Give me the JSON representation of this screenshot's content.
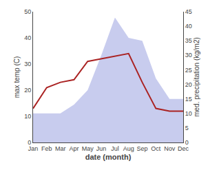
{
  "chart_data": {
    "type": "line",
    "categories": [
      "Jan",
      "Feb",
      "Mar",
      "Apr",
      "May",
      "Jun",
      "Jul",
      "Aug",
      "Sep",
      "Oct",
      "Nov",
      "Dec"
    ],
    "series": [
      {
        "type": "area",
        "axis": "y2",
        "color": "#c8ccee",
        "values": [
          10,
          10,
          10,
          13,
          18,
          30,
          43,
          36,
          35,
          22,
          15,
          15
        ]
      },
      {
        "type": "line",
        "color": "#aa2222",
        "values": [
          13,
          21,
          23,
          24,
          31,
          32,
          33,
          34,
          23,
          13,
          12,
          12
        ]
      }
    ],
    "xlabel": "date (month)",
    "ylabel": "max temp (C)",
    "y2label": "med. precipitation (kg/m2)",
    "ylim": [
      0,
      50
    ],
    "yticks": [
      0,
      10,
      20,
      30,
      40,
      50
    ],
    "y2lim": [
      0,
      45
    ],
    "y2ticks": [
      0,
      5,
      10,
      15,
      20,
      25,
      30,
      35,
      40,
      45
    ],
    "grid": false
  }
}
